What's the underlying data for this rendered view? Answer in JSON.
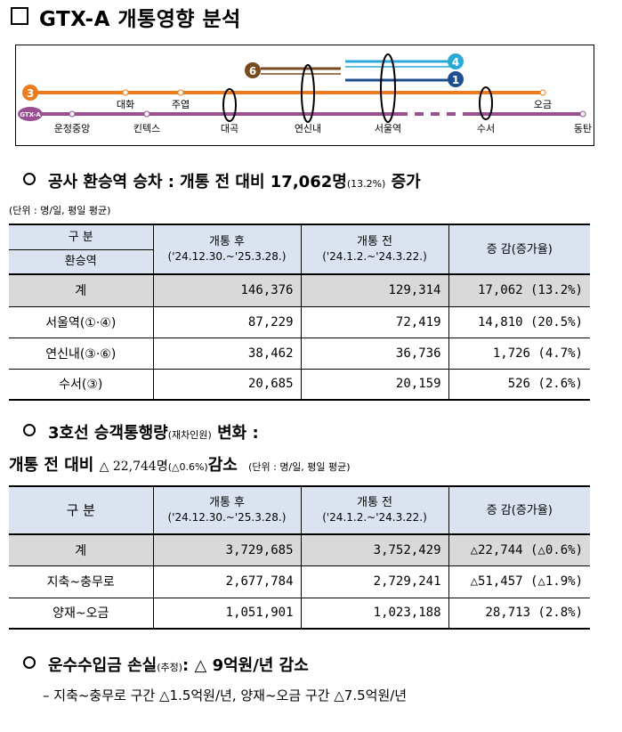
{
  "title": "GTX-A 개통영향 분석",
  "map": {
    "line3_badge": "3",
    "line6_badge": "6",
    "line4_badge": "4",
    "line1_badge": "1",
    "gtx_badge": "GTX-A",
    "stations_top": [
      "대화",
      "주엽",
      "오금"
    ],
    "stations_bottom": [
      "운정중앙",
      "킨텍스",
      "대곡",
      "연신내",
      "서울역",
      "수서",
      "동탄"
    ],
    "colors": {
      "line3": "#ef7c1c",
      "line6": "#7a4a1f",
      "line4": "#2aa8d8",
      "line1": "#1f4e8c",
      "gtx": "#9a4f92"
    }
  },
  "section1": {
    "heading_main": "공사 환승역 승차 : 개통 전 대비 17,062명",
    "heading_pct": "(13.2%)",
    "heading_tail": "증가",
    "unit": "(단위 : 명/일, 평일 평균)",
    "headers": {
      "label_top": "구  분",
      "label_bottom": "환승역",
      "after": "개통 후",
      "after_period": "('24.12.30.~'25.3.28.)",
      "before": "개통 전",
      "before_period": "('24.1.2.~'24.3.22.)",
      "change": "증 감(증가율)"
    },
    "rows": [
      {
        "label": "계",
        "after": "146,376",
        "before": "129,314",
        "change": "17,062 (13.2%)"
      },
      {
        "label": "서울역(①·④)",
        "after": "87,229",
        "before": "72,419",
        "change": "14,810 (20.5%)"
      },
      {
        "label": "연신내(③·⑥)",
        "after": "38,462",
        "before": "36,736",
        "change": "1,726 (4.7%)"
      },
      {
        "label": "수서(③)",
        "after": "20,685",
        "before": "20,159",
        "change": "526 (2.6%)"
      }
    ]
  },
  "section2": {
    "heading_a": "3호선 승객통행량",
    "heading_small": "(재차인원)",
    "heading_b": "변화 :",
    "line2_a": "개통 전 대비",
    "line2_num": "△ 22,744명",
    "line2_pct": "(△0.6%)",
    "line2_b": "감소",
    "unit": "(단위 : 명/일, 평일 평균)",
    "headers": {
      "label": "구  분",
      "after": "개통 후",
      "after_period": "('24.12.30.~'25.3.28.)",
      "before": "개통 전",
      "before_period": "('24.1.2.~'24.3.22.)",
      "change": "증 감(증가율)"
    },
    "rows": [
      {
        "label": "계",
        "after": "3,729,685",
        "before": "3,752,429",
        "change": "△22,744 (△0.6%)"
      },
      {
        "label": "지축~충무로",
        "after": "2,677,784",
        "before": "2,729,241",
        "change": "△51,457 (△1.9%)"
      },
      {
        "label": "양재~오금",
        "after": "1,051,901",
        "before": "1,023,188",
        "change": "28,713 (2.8%)"
      }
    ]
  },
  "section3": {
    "heading_a": "운수수입금 손실",
    "heading_small": "(추정)",
    "heading_b": ": △ 9억원/년 감소",
    "detail": "– 지축~충무로 구간 △1.5억원/년, 양재~오금 구간 △7.5억원/년"
  }
}
